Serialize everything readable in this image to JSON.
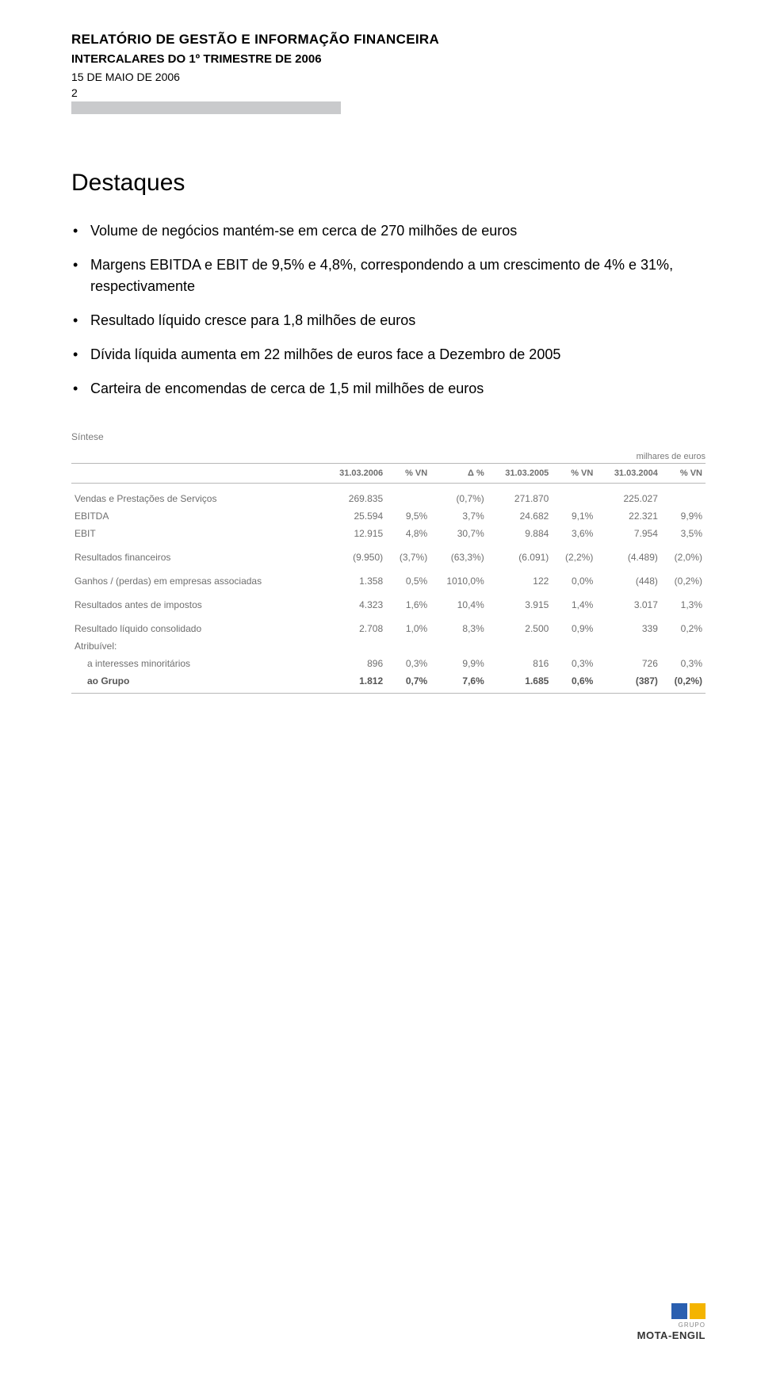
{
  "header": {
    "line1": "RELATÓRIO DE GESTÃO E INFORMAÇÃO FINANCEIRA",
    "line2": "INTERCALARES DO 1º TRIMESTRE DE 2006",
    "line3": "15 DE MAIO DE 2006",
    "page_num": "2",
    "grey_bar_color": "#c9cacc"
  },
  "title": "Destaques",
  "bullets": [
    "Volume de negócios mantém-se em cerca de 270 milhões de euros",
    "Margens EBITDA e EBIT de 9,5% e 4,8%, correspondendo a um crescimento de 4% e 31%, respectivamente",
    "Resultado líquido cresce para 1,8 milhões de euros",
    "Dívida líquida aumenta em 22 milhões de euros face a Dezembro de 2005",
    "Carteira de encomendas de cerca de 1,5 mil milhões de euros"
  ],
  "table": {
    "sintese_label": "Síntese",
    "unit": "milhares de euros",
    "label_color": "#7a7a7a",
    "text_color": "#6f6f6f",
    "border_color": "#b8b8b8",
    "font_size_body": 12,
    "font_size_header": 11,
    "columns": [
      "",
      "31.03.2006",
      "% VN",
      "Δ %",
      "31.03.2005",
      "% VN",
      "31.03.2004",
      "% VN"
    ],
    "rows": [
      {
        "label": "Vendas e Prestações de Serviços",
        "v2006": "269.835",
        "pvn2006": "",
        "delta": "(0,7%)",
        "v2005": "271.870",
        "pvn2005": "",
        "v2004": "225.027",
        "pvn2004": "",
        "spacer": true
      },
      {
        "label": "EBITDA",
        "v2006": "25.594",
        "pvn2006": "9,5%",
        "delta": "3,7%",
        "v2005": "24.682",
        "pvn2005": "9,1%",
        "v2004": "22.321",
        "pvn2004": "9,9%"
      },
      {
        "label": "EBIT",
        "v2006": "12.915",
        "pvn2006": "4,8%",
        "delta": "30,7%",
        "v2005": "9.884",
        "pvn2005": "3,6%",
        "v2004": "7.954",
        "pvn2004": "3,5%"
      },
      {
        "label": "Resultados financeiros",
        "v2006": "(9.950)",
        "pvn2006": "(3,7%)",
        "delta": "(63,3%)",
        "v2005": "(6.091)",
        "pvn2005": "(2,2%)",
        "v2004": "(4.489)",
        "pvn2004": "(2,0%)",
        "spacer": true
      },
      {
        "label": "Ganhos / (perdas) em empresas associadas",
        "v2006": "1.358",
        "pvn2006": "0,5%",
        "delta": "1010,0%",
        "v2005": "122",
        "pvn2005": "0,0%",
        "v2004": "(448)",
        "pvn2004": "(0,2%)",
        "spacer": true
      },
      {
        "label": "Resultados antes de impostos",
        "v2006": "4.323",
        "pvn2006": "1,6%",
        "delta": "10,4%",
        "v2005": "3.915",
        "pvn2005": "1,4%",
        "v2004": "3.017",
        "pvn2004": "1,3%",
        "spacer": true
      },
      {
        "label": "Resultado líquido consolidado",
        "v2006": "2.708",
        "pvn2006": "1,0%",
        "delta": "8,3%",
        "v2005": "2.500",
        "pvn2005": "0,9%",
        "v2004": "339",
        "pvn2004": "0,2%",
        "spacer": true
      },
      {
        "label": "Atribuível:",
        "v2006": "",
        "pvn2006": "",
        "delta": "",
        "v2005": "",
        "pvn2005": "",
        "v2004": "",
        "pvn2004": ""
      },
      {
        "label": "a interesses minoritários",
        "v2006": "896",
        "pvn2006": "0,3%",
        "delta": "9,9%",
        "v2005": "816",
        "pvn2005": "0,3%",
        "v2004": "726",
        "pvn2004": "0,3%",
        "indent": true
      },
      {
        "label": "ao Grupo",
        "v2006": "1.812",
        "pvn2006": "0,7%",
        "delta": "7,6%",
        "v2005": "1.685",
        "pvn2005": "0,6%",
        "v2004": "(387)",
        "pvn2004": "(0,2%)",
        "bold": true,
        "indent": true,
        "bottom": true
      }
    ]
  },
  "footer": {
    "grupo": "GRUPO",
    "brand": "MOTA-ENGIL",
    "blue": "#2a5fb0",
    "yellow": "#f4b400"
  }
}
